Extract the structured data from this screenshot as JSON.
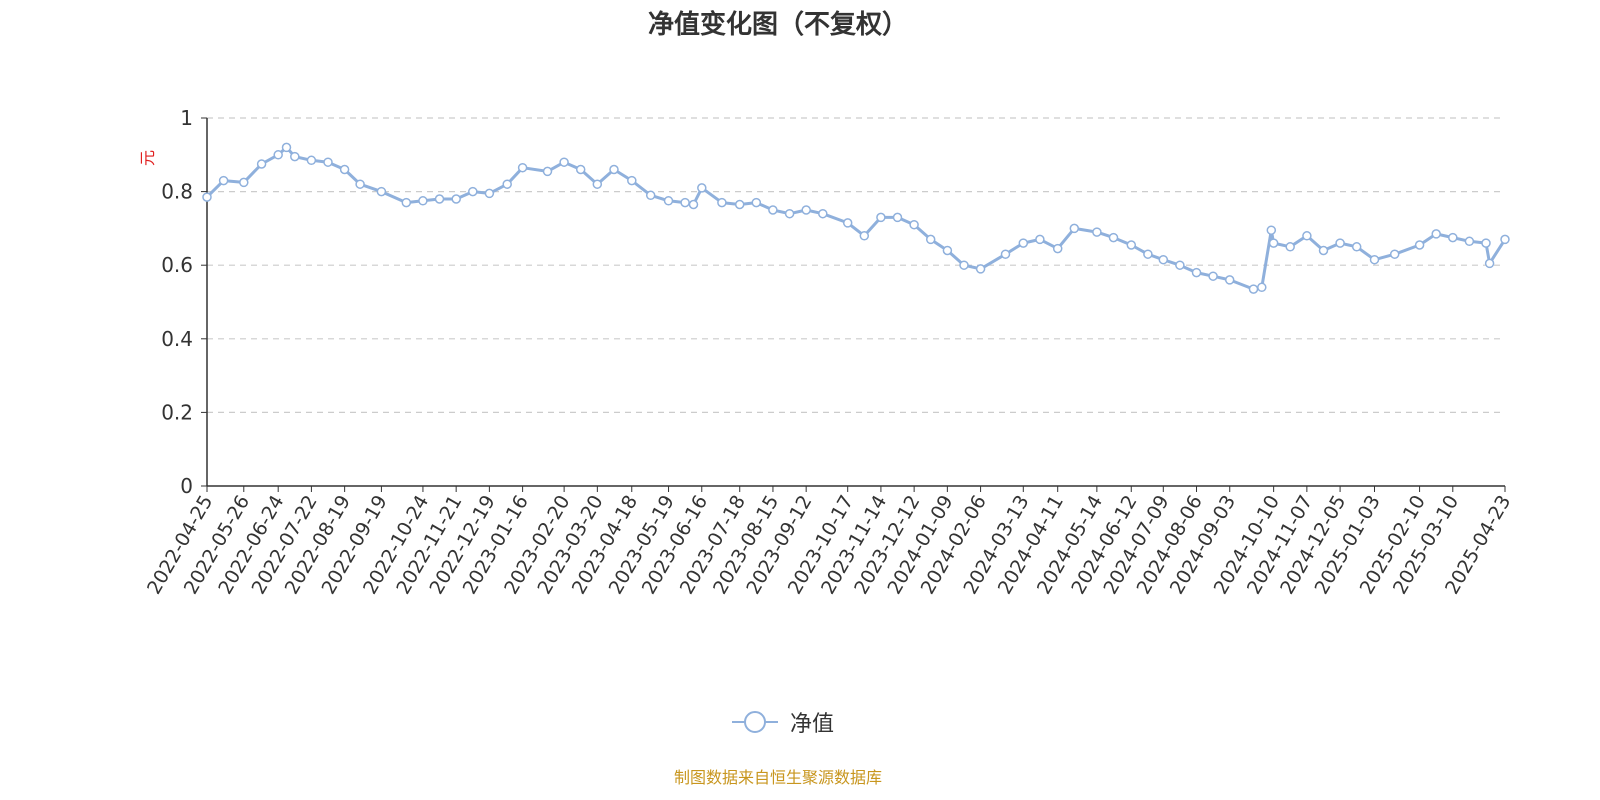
{
  "chart_data": {
    "type": "line",
    "title": "净值变化图（不复权）",
    "ylabel": "元",
    "ylim": [
      0,
      1
    ],
    "yticks": [
      "0",
      "0.2",
      "0.4",
      "0.6",
      "0.8",
      "1"
    ],
    "grid": true,
    "legend_position": "bottom",
    "xticks": [
      "2022-04-25",
      "2022-05-26",
      "2022-06-24",
      "2022-07-22",
      "2022-08-19",
      "2022-09-19",
      "2022-10-24",
      "2022-11-21",
      "2022-12-19",
      "2023-01-16",
      "2023-02-20",
      "2023-03-20",
      "2023-04-18",
      "2023-05-19",
      "2023-06-16",
      "2023-07-18",
      "2023-08-15",
      "2023-09-12",
      "2023-10-17",
      "2023-11-14",
      "2023-12-12",
      "2024-01-09",
      "2024-02-06",
      "2024-03-13",
      "2024-04-11",
      "2024-05-14",
      "2024-06-12",
      "2024-07-09",
      "2024-08-06",
      "2024-09-03",
      "2024-10-10",
      "2024-11-07",
      "2024-12-05",
      "2025-01-03",
      "2025-02-10",
      "2025-03-10",
      "2025-04-23"
    ],
    "series": [
      {
        "name": "净值",
        "color": "#8fb0dc",
        "x": [
          "2022-04-25",
          "2022-05-09",
          "2022-05-26",
          "2022-06-10",
          "2022-06-24",
          "2022-07-01",
          "2022-07-08",
          "2022-07-22",
          "2022-08-05",
          "2022-08-19",
          "2022-09-01",
          "2022-09-19",
          "2022-10-10",
          "2022-10-24",
          "2022-11-07",
          "2022-11-21",
          "2022-12-05",
          "2022-12-19",
          "2023-01-03",
          "2023-01-16",
          "2023-02-06",
          "2023-02-20",
          "2023-03-06",
          "2023-03-20",
          "2023-04-03",
          "2023-04-18",
          "2023-05-04",
          "2023-05-19",
          "2023-06-02",
          "2023-06-09",
          "2023-06-16",
          "2023-07-03",
          "2023-07-18",
          "2023-08-01",
          "2023-08-15",
          "2023-08-29",
          "2023-09-12",
          "2023-09-26",
          "2023-10-17",
          "2023-10-31",
          "2023-11-14",
          "2023-11-28",
          "2023-12-12",
          "2023-12-26",
          "2024-01-09",
          "2024-01-23",
          "2024-02-06",
          "2024-02-27",
          "2024-03-13",
          "2024-03-27",
          "2024-04-11",
          "2024-04-25",
          "2024-05-14",
          "2024-05-28",
          "2024-06-12",
          "2024-06-26",
          "2024-07-09",
          "2024-07-23",
          "2024-08-06",
          "2024-08-20",
          "2024-09-03",
          "2024-09-23",
          "2024-09-30",
          "2024-10-08",
          "2024-10-10",
          "2024-10-24",
          "2024-11-07",
          "2024-11-21",
          "2024-12-05",
          "2024-12-19",
          "2025-01-03",
          "2025-01-20",
          "2025-02-10",
          "2025-02-24",
          "2025-03-10",
          "2025-03-24",
          "2025-04-07",
          "2025-04-10",
          "2025-04-23"
        ],
        "values": [
          0.785,
          0.83,
          0.825,
          0.875,
          0.9,
          0.92,
          0.895,
          0.885,
          0.88,
          0.86,
          0.82,
          0.8,
          0.77,
          0.775,
          0.78,
          0.78,
          0.8,
          0.795,
          0.82,
          0.865,
          0.855,
          0.88,
          0.86,
          0.82,
          0.86,
          0.83,
          0.79,
          0.775,
          0.77,
          0.765,
          0.81,
          0.77,
          0.765,
          0.77,
          0.75,
          0.74,
          0.75,
          0.74,
          0.715,
          0.68,
          0.73,
          0.73,
          0.71,
          0.67,
          0.64,
          0.6,
          0.59,
          0.63,
          0.66,
          0.67,
          0.645,
          0.7,
          0.69,
          0.675,
          0.655,
          0.63,
          0.615,
          0.6,
          0.58,
          0.57,
          0.56,
          0.535,
          0.54,
          0.695,
          0.66,
          0.65,
          0.68,
          0.64,
          0.66,
          0.65,
          0.615,
          0.63,
          0.655,
          0.685,
          0.675,
          0.665,
          0.66,
          0.605,
          0.67
        ]
      }
    ],
    "legend": [
      {
        "name": "净值"
      }
    ]
  },
  "footer": {
    "source": "制图数据来自恒生聚源数据库"
  }
}
